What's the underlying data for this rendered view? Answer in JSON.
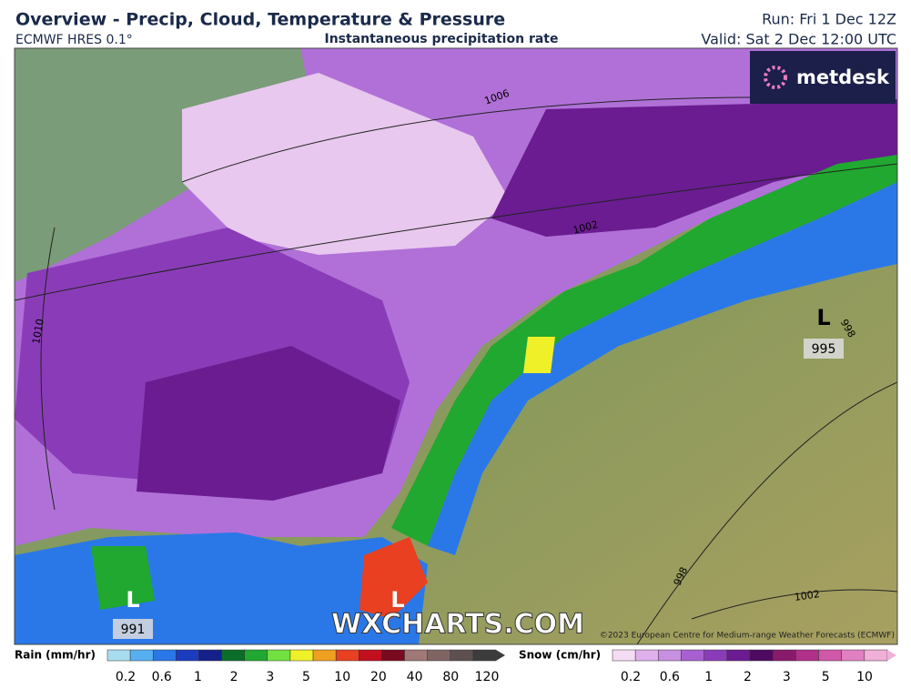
{
  "header": {
    "title": "Overview - Precip, Cloud, Temperature & Pressure",
    "model": "ECMWF HRES 0.1°",
    "field": "Instantaneous precipitation rate",
    "run": "Run: Fri 1 Dec 12Z",
    "valid": "Valid: Sat 2 Dec 12:00 UTC"
  },
  "logo": "metdesk",
  "map": {
    "isobars": [
      "1006",
      "1002",
      "1010",
      "998",
      "998",
      "1002"
    ],
    "lows": [
      {
        "symbol": "L",
        "pressure": "995"
      },
      {
        "symbol": "L",
        "pressure": "991"
      },
      {
        "symbol": "L"
      }
    ],
    "watermark": "WXCHARTS.COM",
    "copyright": "©2023 European Centre for Medium-range Weather Forecasts (ECMWF)"
  },
  "legend": {
    "rain": {
      "title": "Rain (mm/hr)",
      "ticks": [
        0.2,
        0.6,
        1,
        2,
        3,
        5,
        10,
        20,
        40,
        80,
        120
      ],
      "colors": [
        "#a8dcef",
        "#56b0f0",
        "#2a78e8",
        "#1c3cc0",
        "#16208a",
        "#0a6e2a",
        "#20a830",
        "#72e040",
        "#f0f028",
        "#f0a020",
        "#e84020",
        "#c01020",
        "#7a0a20",
        "#a07878",
        "#806464",
        "#5e5050",
        "#3c3c3c"
      ]
    },
    "snow": {
      "title": "Snow (cm/hr)",
      "ticks": [
        0.2,
        0.6,
        1,
        2,
        3,
        5,
        10
      ],
      "colors": [
        "#f4dcf4",
        "#e0b0ec",
        "#c890e0",
        "#a860d0",
        "#8a3cb8",
        "#6a1c90",
        "#4e0a60",
        "#8a1a6a",
        "#b0308a",
        "#d058a8",
        "#e080c0",
        "#f0b0d8"
      ]
    }
  }
}
